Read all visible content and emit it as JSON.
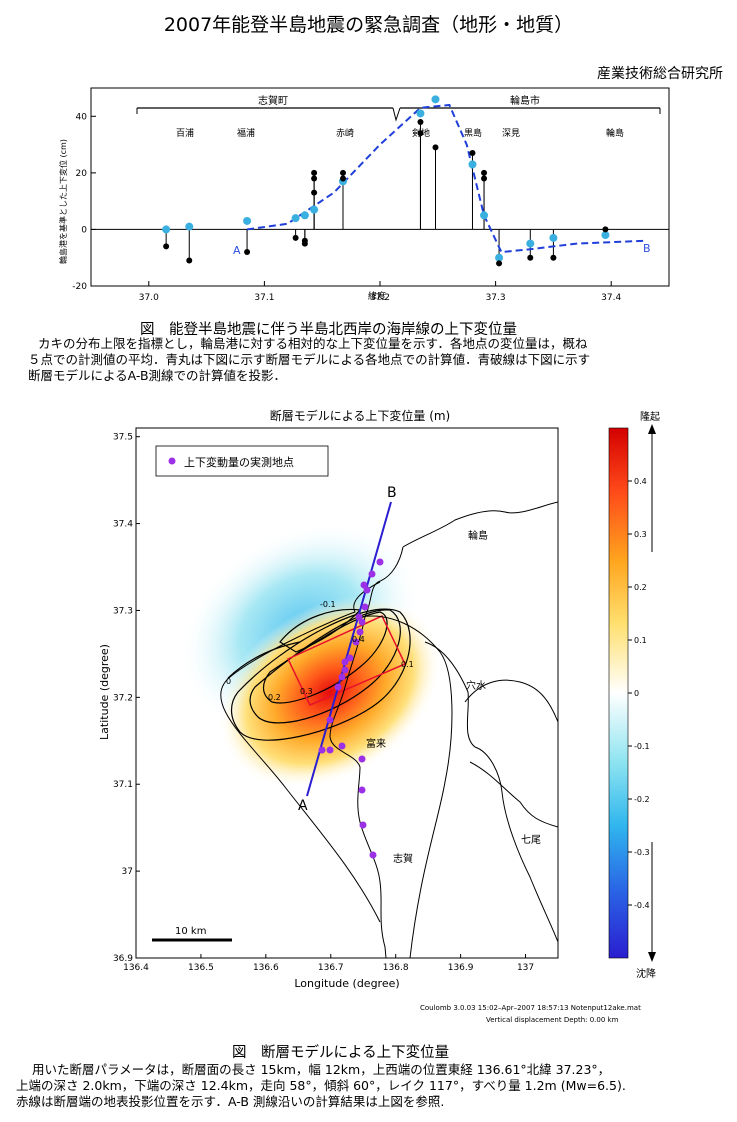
{
  "title": "2007年能登半島地震の緊急調査（地形・地質）",
  "organization": "産業技術総合研究所",
  "fig1": {
    "caption": "図　能登半島地震に伴う半島北西岸の海岸線の上下変位量",
    "desc_lines": [
      "カキの分布上限を指標とし，輪島港に対する相対的な上下変位量を示す．各地点の変位量は，概ね",
      "５点での計測値の平均．青丸は下図に示す断層モデルによる各地点での計算値．青破線は下図に示す",
      "断層モデルによるA-B測線での計算値を投影．"
    ],
    "regions": [
      "志賀町",
      "輪島市"
    ],
    "places": [
      "百浦",
      "福浦",
      "赤崎",
      "剣地",
      "黒島",
      "深見",
      "輪島"
    ],
    "ylabel": "輪島港を基準とした上下変位 (cm)",
    "xlabel": "緯度",
    "point_a": "A",
    "point_b": "B",
    "chart_data": {
      "type": "scatter",
      "xlabel": "緯度",
      "ylabel": "輪島港を基準とした上下変位 (cm)",
      "xlim": [
        36.95,
        37.45
      ],
      "ylim": [
        -20,
        50
      ],
      "x_ticks": [
        "37.0",
        "37.1",
        "37.2",
        "37.3",
        "37.4"
      ],
      "y_ticks": [
        "40",
        "20",
        "0",
        "-20"
      ],
      "series": [
        {
          "kind": "measured",
          "color": "#000000",
          "points": [
            [
              37.015,
              -6
            ],
            [
              37.035,
              -11
            ],
            [
              37.085,
              -8
            ],
            [
              37.127,
              -3
            ],
            [
              37.135,
              -4
            ],
            [
              37.135,
              -5
            ],
            [
              37.143,
              18
            ],
            [
              37.143,
              20
            ],
            [
              37.143,
              13
            ],
            [
              37.168,
              20
            ],
            [
              37.168,
              18
            ],
            [
              37.235,
              38
            ],
            [
              37.235,
              34
            ],
            [
              37.248,
              29
            ],
            [
              37.28,
              27
            ],
            [
              37.29,
              20
            ],
            [
              37.29,
              18
            ],
            [
              37.303,
              -12
            ],
            [
              37.33,
              -10
            ],
            [
              37.35,
              -10
            ],
            [
              37.395,
              0
            ]
          ]
        },
        {
          "kind": "model",
          "color": "#3ab0e0",
          "points": [
            [
              37.015,
              0
            ],
            [
              37.035,
              1
            ],
            [
              37.085,
              3
            ],
            [
              37.127,
              4
            ],
            [
              37.135,
              5
            ],
            [
              37.143,
              7
            ],
            [
              37.168,
              17
            ],
            [
              37.235,
              41
            ],
            [
              37.248,
              46
            ],
            [
              37.28,
              23
            ],
            [
              37.29,
              5
            ],
            [
              37.303,
              -10
            ],
            [
              37.33,
              -5
            ],
            [
              37.35,
              -3
            ],
            [
              37.395,
              -2
            ]
          ]
        },
        {
          "kind": "model A-B",
          "color": "#1f3fd8",
          "points": [
            [
              37.085,
              0
            ],
            [
              37.12,
              2
            ],
            [
              37.16,
              13
            ],
            [
              37.2,
              30
            ],
            [
              37.235,
              43
            ],
            [
              37.26,
              44
            ],
            [
              37.275,
              30
            ],
            [
              37.29,
              5
            ],
            [
              37.305,
              -8
            ],
            [
              37.33,
              -7
            ],
            [
              37.37,
              -5
            ],
            [
              37.43,
              -4
            ]
          ]
        }
      ]
    }
  },
  "fig2": {
    "title": "断層モデルによる上下変位量 (m)",
    "legend": "上下変動量の実測地点",
    "xlabel": "Longitude (degree)",
    "ylabel": "Latitude (degree)",
    "x_ticks": [
      "136.4",
      "136.5",
      "136.6",
      "136.7",
      "136.8",
      "136.9",
      "137"
    ],
    "y_ticks": [
      "37.5",
      "37.4",
      "37.3",
      "37.2",
      "37.1",
      "37",
      "36.9"
    ],
    "cb_top": "隆起",
    "cb_bottom": "沈降",
    "cb_ticks": [
      "0.4",
      "0.3",
      "0.2",
      "0.1",
      "0",
      "-0.1",
      "-0.2",
      "-0.3",
      "-0.4"
    ],
    "places": [
      "輪島",
      "穴水",
      "富来",
      "七尾",
      "志賀"
    ],
    "point_a": "A",
    "point_b": "B",
    "scale": "10 km",
    "contours": [
      "-0.1",
      "0",
      "0.1",
      "0.2",
      "0.3",
      "0.4"
    ],
    "footer1": "Coulomb 3.0.03 15:02–Apr–2007 18:57:13 Notenput12ake.mat",
    "footer2": "Vertical displacement  Depth: 0.00 km",
    "caption": "図　断層モデルによる上下変位量",
    "desc_lines": [
      "用いた断層パラメータは，断層面の長さ 15km，幅 12km，上西端の位置東経 136.61°北緯 37.23°，",
      "上端の深さ 2.0km，下端の深さ 12.4km，走向 58°，傾斜 60°，レイク 117°，すべり量 1.2m (Mw=6.5).",
      "赤線は断層端の地表投影位置を示す．A-B 測線沿いの計算結果は上図を参照."
    ]
  }
}
